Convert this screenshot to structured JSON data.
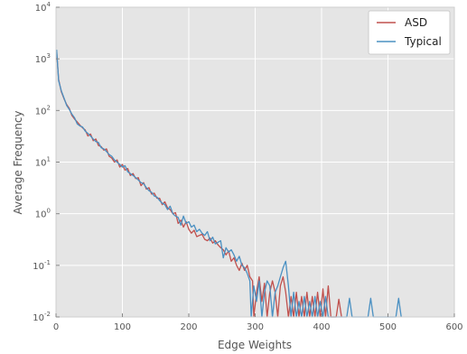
{
  "chart_data": {
    "type": "line",
    "xlabel": "Edge Weights",
    "ylabel": "Average Frequency",
    "xlim": [
      0,
      600
    ],
    "ylim": [
      0.01,
      10000
    ],
    "yscale": "log",
    "xticks": [
      0,
      100,
      200,
      300,
      400,
      500,
      600
    ],
    "xtick_labels": [
      "0",
      "100",
      "200",
      "300",
      "400",
      "500",
      "600"
    ],
    "yticks": [
      {
        "value": 0.01,
        "base": "10",
        "exp": "-2"
      },
      {
        "value": 0.1,
        "base": "10",
        "exp": "-1"
      },
      {
        "value": 1,
        "base": "10",
        "exp": "0"
      },
      {
        "value": 10,
        "base": "10",
        "exp": "1"
      },
      {
        "value": 100,
        "base": "10",
        "exp": "2"
      },
      {
        "value": 1000,
        "base": "10",
        "exp": "3"
      },
      {
        "value": 10000,
        "base": "10",
        "exp": "4"
      }
    ],
    "grid": true,
    "legend_position": "top-right",
    "background": "#e5e5e5",
    "series": [
      {
        "name": "ASD",
        "color": "#c0504d",
        "points": [
          [
            1,
            1400
          ],
          [
            4,
            400
          ],
          [
            8,
            230
          ],
          [
            12,
            170
          ],
          [
            16,
            130
          ],
          [
            20,
            110
          ],
          [
            24,
            80
          ],
          [
            28,
            68
          ],
          [
            32,
            60
          ],
          [
            36,
            52
          ],
          [
            40,
            46
          ],
          [
            44,
            42
          ],
          [
            48,
            32
          ],
          [
            52,
            35
          ],
          [
            56,
            26
          ],
          [
            60,
            28
          ],
          [
            64,
            21
          ],
          [
            68,
            20
          ],
          [
            72,
            17
          ],
          [
            76,
            18
          ],
          [
            80,
            13
          ],
          [
            84,
            12
          ],
          [
            88,
            10
          ],
          [
            92,
            11
          ],
          [
            96,
            8
          ],
          [
            100,
            9
          ],
          [
            104,
            7
          ],
          [
            108,
            7.5
          ],
          [
            112,
            5.5
          ],
          [
            116,
            6
          ],
          [
            120,
            4.8
          ],
          [
            124,
            5
          ],
          [
            128,
            3.5
          ],
          [
            132,
            4
          ],
          [
            136,
            3
          ],
          [
            140,
            3.2
          ],
          [
            144,
            2.4
          ],
          [
            148,
            2.5
          ],
          [
            152,
            2
          ],
          [
            156,
            2
          ],
          [
            160,
            1.5
          ],
          [
            164,
            1.7
          ],
          [
            168,
            1.3
          ],
          [
            172,
            1.2
          ],
          [
            176,
            1.0
          ],
          [
            180,
            1.05
          ],
          [
            184,
            0.65
          ],
          [
            188,
            0.75
          ],
          [
            192,
            0.55
          ],
          [
            196,
            0.7
          ],
          [
            200,
            0.5
          ],
          [
            204,
            0.42
          ],
          [
            208,
            0.48
          ],
          [
            212,
            0.36
          ],
          [
            216,
            0.38
          ],
          [
            220,
            0.4
          ],
          [
            224,
            0.32
          ],
          [
            228,
            0.3
          ],
          [
            232,
            0.34
          ],
          [
            236,
            0.27
          ],
          [
            240,
            0.3
          ],
          [
            244,
            0.25
          ],
          [
            248,
            0.22
          ],
          [
            252,
            0.2
          ],
          [
            256,
            0.16
          ],
          [
            260,
            0.19
          ],
          [
            264,
            0.12
          ],
          [
            268,
            0.14
          ],
          [
            272,
            0.1
          ],
          [
            276,
            0.08
          ],
          [
            280,
            0.11
          ],
          [
            284,
            0.08
          ],
          [
            288,
            0.1
          ],
          [
            292,
            0.06
          ],
          [
            296,
            0.05
          ],
          [
            298,
            0.01
          ],
          [
            302,
            0.03
          ],
          [
            306,
            0.06
          ],
          [
            310,
            0.02
          ],
          [
            314,
            0.045
          ],
          [
            318,
            0.01
          ],
          [
            322,
            0.03
          ],
          [
            326,
            0.05
          ],
          [
            330,
            0.03
          ],
          [
            334,
            0.01
          ],
          [
            338,
            0.04
          ],
          [
            342,
            0.06
          ],
          [
            346,
            0.03
          ],
          [
            350,
            0.01
          ],
          [
            354,
            0.025
          ],
          [
            358,
            0.01
          ],
          [
            362,
            0.03
          ],
          [
            366,
            0.01
          ],
          [
            370,
            0.025
          ],
          [
            374,
            0.01
          ],
          [
            378,
            0.03
          ],
          [
            382,
            0.01
          ],
          [
            386,
            0.025
          ],
          [
            390,
            0.01
          ],
          [
            394,
            0.03
          ],
          [
            398,
            0.01
          ],
          [
            402,
            0.035
          ],
          [
            406,
            0.01
          ],
          [
            410,
            0.04
          ],
          [
            414,
            0.01
          ],
          [
            422,
            0.01
          ],
          [
            426,
            0.022
          ],
          [
            430,
            0.01
          ]
        ]
      },
      {
        "name": "Typical",
        "color": "#4a90c2",
        "points": [
          [
            1,
            1500
          ],
          [
            4,
            380
          ],
          [
            8,
            240
          ],
          [
            12,
            175
          ],
          [
            16,
            125
          ],
          [
            20,
            105
          ],
          [
            24,
            85
          ],
          [
            28,
            72
          ],
          [
            32,
            55
          ],
          [
            36,
            50
          ],
          [
            40,
            48
          ],
          [
            44,
            40
          ],
          [
            48,
            36
          ],
          [
            52,
            32
          ],
          [
            56,
            28
          ],
          [
            60,
            25
          ],
          [
            64,
            24
          ],
          [
            68,
            19
          ],
          [
            72,
            18
          ],
          [
            76,
            16
          ],
          [
            80,
            14
          ],
          [
            84,
            13
          ],
          [
            88,
            11
          ],
          [
            92,
            10
          ],
          [
            96,
            9
          ],
          [
            100,
            8
          ],
          [
            104,
            8.5
          ],
          [
            108,
            6.5
          ],
          [
            112,
            6
          ],
          [
            116,
            5.5
          ],
          [
            120,
            5
          ],
          [
            124,
            4.5
          ],
          [
            128,
            4
          ],
          [
            132,
            3.8
          ],
          [
            136,
            3.2
          ],
          [
            140,
            2.8
          ],
          [
            144,
            2.6
          ],
          [
            148,
            2.2
          ],
          [
            152,
            2.1
          ],
          [
            156,
            1.8
          ],
          [
            160,
            1.6
          ],
          [
            164,
            1.5
          ],
          [
            168,
            1.2
          ],
          [
            172,
            1.4
          ],
          [
            176,
            1.0
          ],
          [
            180,
            0.9
          ],
          [
            184,
            0.85
          ],
          [
            188,
            0.6
          ],
          [
            192,
            0.9
          ],
          [
            196,
            0.65
          ],
          [
            200,
            0.7
          ],
          [
            204,
            0.55
          ],
          [
            208,
            0.6
          ],
          [
            212,
            0.45
          ],
          [
            216,
            0.5
          ],
          [
            220,
            0.42
          ],
          [
            224,
            0.38
          ],
          [
            228,
            0.45
          ],
          [
            232,
            0.3
          ],
          [
            236,
            0.35
          ],
          [
            240,
            0.26
          ],
          [
            244,
            0.28
          ],
          [
            248,
            0.3
          ],
          [
            252,
            0.14
          ],
          [
            256,
            0.22
          ],
          [
            260,
            0.18
          ],
          [
            264,
            0.2
          ],
          [
            268,
            0.16
          ],
          [
            272,
            0.12
          ],
          [
            276,
            0.15
          ],
          [
            280,
            0.1
          ],
          [
            284,
            0.09
          ],
          [
            288,
            0.07
          ],
          [
            292,
            0.05
          ],
          [
            294,
            0.01
          ],
          [
            298,
            0.04
          ],
          [
            302,
            0.02
          ],
          [
            306,
            0.05
          ],
          [
            310,
            0.01
          ],
          [
            314,
            0.03
          ],
          [
            318,
            0.05
          ],
          [
            322,
            0.04
          ],
          [
            326,
            0.01
          ],
          [
            330,
            0.03
          ],
          [
            334,
            0.04
          ],
          [
            338,
            0.06
          ],
          [
            342,
            0.09
          ],
          [
            346,
            0.12
          ],
          [
            350,
            0.04
          ],
          [
            354,
            0.01
          ],
          [
            358,
            0.03
          ],
          [
            362,
            0.01
          ],
          [
            366,
            0.02
          ],
          [
            370,
            0.01
          ],
          [
            374,
            0.025
          ],
          [
            378,
            0.01
          ],
          [
            382,
            0.02
          ],
          [
            386,
            0.01
          ],
          [
            390,
            0.025
          ],
          [
            394,
            0.01
          ],
          [
            398,
            0.02
          ],
          [
            402,
            0.01
          ],
          [
            406,
            0.025
          ],
          [
            410,
            0.01
          ],
          [
            438,
            0.01
          ],
          [
            442,
            0.023
          ],
          [
            446,
            0.01
          ],
          [
            470,
            0.01
          ],
          [
            474,
            0.023
          ],
          [
            478,
            0.01
          ],
          [
            512,
            0.01
          ],
          [
            516,
            0.023
          ],
          [
            520,
            0.01
          ]
        ]
      }
    ]
  }
}
